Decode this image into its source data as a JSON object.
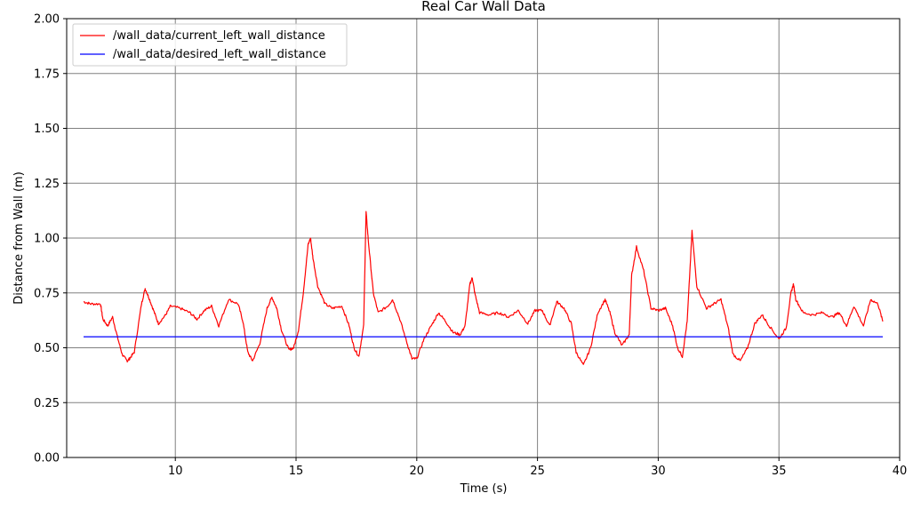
{
  "chart_data": {
    "type": "line",
    "title": "Real Car Wall Data",
    "xlabel": "Time (s)",
    "ylabel": "Distance from Wall (m)",
    "xlim": [
      5.5,
      40
    ],
    "ylim": [
      0,
      2
    ],
    "xticks": [
      10,
      15,
      20,
      25,
      30,
      35,
      40
    ],
    "yticks": [
      0.0,
      0.25,
      0.5,
      0.75,
      1.0,
      1.25,
      1.5,
      1.75,
      2.0
    ],
    "xtick_labels": [
      "10",
      "15",
      "20",
      "25",
      "30",
      "35",
      "40"
    ],
    "ytick_labels": [
      "0.00",
      "0.25",
      "0.50",
      "0.75",
      "1.00",
      "1.25",
      "1.50",
      "1.75",
      "2.00"
    ],
    "grid": true,
    "legend_position": "top-left",
    "series": [
      {
        "name": "/wall_data/current_left_wall_distance",
        "color": "#ff0000",
        "x": [
          6.2,
          6.5,
          6.9,
          7.0,
          7.2,
          7.4,
          7.6,
          7.8,
          8.0,
          8.1,
          8.3,
          8.6,
          8.75,
          8.9,
          9.1,
          9.3,
          9.6,
          9.8,
          10.2,
          10.6,
          10.9,
          11.2,
          11.5,
          11.8,
          12.2,
          12.6,
          12.8,
          13.0,
          13.2,
          13.5,
          13.8,
          14.0,
          14.2,
          14.4,
          14.7,
          14.9,
          15.1,
          15.3,
          15.5,
          15.6,
          15.7,
          15.9,
          16.2,
          16.5,
          16.9,
          17.2,
          17.4,
          17.6,
          17.8,
          17.9,
          18.0,
          18.2,
          18.4,
          18.8,
          19.0,
          19.3,
          19.6,
          19.8,
          20.0,
          20.3,
          20.6,
          20.9,
          21.2,
          21.5,
          21.8,
          22.0,
          22.2,
          22.3,
          22.4,
          22.6,
          23.0,
          23.4,
          23.8,
          24.2,
          24.6,
          24.9,
          25.2,
          25.5,
          25.8,
          26.1,
          26.4,
          26.6,
          26.9,
          27.2,
          27.5,
          27.8,
          28.0,
          28.2,
          28.5,
          28.8,
          28.9,
          29.1,
          29.4,
          29.7,
          30.0,
          30.3,
          30.6,
          30.8,
          31.0,
          31.2,
          31.4,
          31.6,
          32.0,
          32.3,
          32.6,
          32.9,
          33.1,
          33.4,
          33.7,
          34.0,
          34.3,
          34.6,
          35.0,
          35.3,
          35.5,
          35.6,
          35.7,
          36.0,
          36.4,
          36.8,
          37.2,
          37.5,
          37.8,
          38.1,
          38.5,
          38.8,
          39.1,
          39.3
        ],
        "y": [
          0.71,
          0.7,
          0.7,
          0.63,
          0.6,
          0.64,
          0.55,
          0.47,
          0.44,
          0.45,
          0.48,
          0.7,
          0.77,
          0.73,
          0.67,
          0.61,
          0.65,
          0.69,
          0.68,
          0.66,
          0.63,
          0.67,
          0.69,
          0.6,
          0.72,
          0.7,
          0.62,
          0.48,
          0.44,
          0.52,
          0.68,
          0.73,
          0.68,
          0.58,
          0.49,
          0.5,
          0.58,
          0.75,
          0.97,
          1.0,
          0.91,
          0.78,
          0.7,
          0.68,
          0.69,
          0.6,
          0.5,
          0.46,
          0.6,
          1.12,
          0.98,
          0.75,
          0.66,
          0.69,
          0.72,
          0.63,
          0.52,
          0.45,
          0.45,
          0.54,
          0.6,
          0.66,
          0.62,
          0.57,
          0.56,
          0.6,
          0.79,
          0.82,
          0.75,
          0.66,
          0.65,
          0.66,
          0.64,
          0.67,
          0.61,
          0.67,
          0.67,
          0.6,
          0.71,
          0.68,
          0.61,
          0.48,
          0.42,
          0.5,
          0.66,
          0.72,
          0.66,
          0.57,
          0.51,
          0.56,
          0.83,
          0.96,
          0.85,
          0.68,
          0.67,
          0.68,
          0.6,
          0.5,
          0.46,
          0.62,
          1.03,
          0.78,
          0.68,
          0.7,
          0.72,
          0.59,
          0.47,
          0.44,
          0.5,
          0.61,
          0.65,
          0.6,
          0.54,
          0.59,
          0.75,
          0.79,
          0.72,
          0.66,
          0.65,
          0.66,
          0.64,
          0.66,
          0.6,
          0.69,
          0.6,
          0.72,
          0.7,
          0.62
        ],
        "noise": 0.012
      },
      {
        "name": "/wall_data/desired_left_wall_distance",
        "color": "#0000ff",
        "x": [
          6.2,
          39.3
        ],
        "y": [
          0.55,
          0.55
        ]
      }
    ]
  }
}
